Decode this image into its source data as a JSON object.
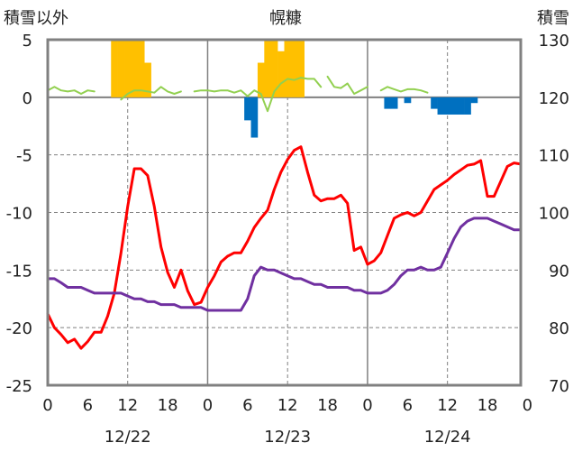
{
  "header": {
    "left_label": "積雪以外",
    "title": "幌糠",
    "right_label": "積雪"
  },
  "chart_data": {
    "type": "line",
    "title": "幌糠",
    "left_axis": {
      "label": "積雪以外",
      "ylim": [
        -25,
        5
      ],
      "ticks": [
        5,
        0,
        -5,
        -10,
        -15,
        -20,
        -25
      ]
    },
    "right_axis": {
      "label": "積雪",
      "ylim": [
        70,
        130
      ],
      "ticks": [
        130,
        120,
        110,
        100,
        90,
        80,
        70
      ]
    },
    "x_axis": {
      "xlim": [
        0,
        71
      ],
      "tick_labels": [
        "0",
        "6",
        "12",
        "18",
        "0",
        "6",
        "12",
        "18",
        "0",
        "6",
        "12",
        "18",
        "0"
      ],
      "tick_hours": [
        0,
        6,
        12,
        18,
        24,
        30,
        36,
        42,
        48,
        54,
        60,
        66,
        72
      ],
      "date_labels": [
        {
          "label": "12/22",
          "hour": 12
        },
        {
          "label": "12/23",
          "hour": 36
        },
        {
          "label": "12/24",
          "hour": 60
        }
      ],
      "day_boundaries": [
        24,
        48
      ],
      "noon_lines": [
        12,
        36,
        60
      ]
    },
    "grid": true,
    "series": [
      {
        "key": "precip_pos",
        "render": "bar",
        "color": "#FFC000",
        "x": [
          10,
          11,
          12,
          13,
          14,
          15,
          32,
          33,
          34,
          35,
          36,
          37,
          38
        ],
        "values": [
          5,
          5,
          5,
          5,
          5,
          3,
          3,
          5,
          5,
          4,
          5,
          5,
          5
        ]
      },
      {
        "key": "precip_neg",
        "render": "bar",
        "color": "#0070C0",
        "x": [
          30,
          31,
          51,
          52,
          54,
          58,
          59,
          60,
          61,
          62,
          63,
          64
        ],
        "values": [
          -2,
          -3.5,
          -1,
          -1,
          -0.5,
          -1,
          -1.5,
          -1.5,
          -1.5,
          -1.5,
          -1.5,
          -0.5
        ]
      },
      {
        "key": "wind",
        "render": "line",
        "color": "#92D050",
        "width": 2,
        "segments": [
          {
            "x": [
              0,
              1,
              2,
              3,
              4,
              5,
              6,
              7
            ],
            "y": [
              0.6,
              0.9,
              0.6,
              0.5,
              0.6,
              0.3,
              0.6,
              0.5
            ]
          },
          {
            "x": [
              11,
              12,
              13,
              14,
              15,
              16,
              17,
              18,
              19,
              20
            ],
            "y": [
              -0.2,
              0.3,
              0.6,
              0.6,
              0.5,
              0.4,
              0.9,
              0.5,
              0.3,
              0.5
            ]
          },
          {
            "x": [
              22,
              23,
              24,
              25,
              26,
              27,
              28,
              29,
              30,
              31,
              32,
              33,
              34,
              35,
              36,
              37,
              38,
              39,
              40,
              41
            ],
            "y": [
              0.5,
              0.6,
              0.6,
              0.5,
              0.6,
              0.6,
              0.4,
              0.6,
              0.1,
              0.6,
              0.3,
              -1.2,
              0.5,
              1.2,
              1.6,
              1.5,
              1.7,
              1.6,
              1.6,
              0.9
            ]
          },
          {
            "x": [
              42,
              43,
              44,
              45,
              46,
              47,
              48
            ],
            "y": [
              1.8,
              0.9,
              0.8,
              1.2,
              0.3,
              0.6,
              0.9
            ]
          },
          {
            "x": [
              50,
              51,
              52,
              53,
              54,
              55,
              56,
              57
            ],
            "y": [
              0.6,
              0.9,
              0.7,
              0.5,
              0.7,
              0.7,
              0.6,
              0.4
            ]
          }
        ]
      },
      {
        "key": "temperature",
        "render": "line",
        "color": "#FF0000",
        "width": 3,
        "x": [
          0,
          1,
          2,
          3,
          4,
          5,
          6,
          7,
          8,
          9,
          10,
          11,
          12,
          13,
          14,
          15,
          16,
          17,
          18,
          19,
          20,
          21,
          22,
          23,
          24,
          25,
          26,
          27,
          28,
          29,
          30,
          31,
          32,
          33,
          34,
          35,
          36,
          37,
          38,
          39,
          40,
          41,
          42,
          43,
          44,
          45,
          46,
          47,
          48,
          49,
          50,
          51,
          52,
          53,
          54,
          55,
          56,
          57,
          58,
          59,
          60,
          61,
          62,
          63,
          64,
          65,
          66,
          67,
          68,
          69,
          70,
          71
        ],
        "y": [
          -18.8,
          -20,
          -20.6,
          -21.3,
          -21,
          -21.8,
          -21.2,
          -20.4,
          -20.4,
          -19,
          -17,
          -13.5,
          -9.5,
          -6.2,
          -6.2,
          -6.8,
          -9.5,
          -13,
          -15.2,
          -16.5,
          -15,
          -16.8,
          -18,
          -17.8,
          -16.5,
          -15.5,
          -14.3,
          -13.8,
          -13.5,
          -13.5,
          -12.5,
          -11.3,
          -10.5,
          -9.8,
          -8,
          -6.5,
          -5.4,
          -4.6,
          -4.3,
          -6.5,
          -8.5,
          -9,
          -8.8,
          -8.8,
          -8.5,
          -9.2,
          -13.3,
          -13,
          -14.5,
          -14.2,
          -13.5,
          -12,
          -10.5,
          -10.2,
          -10,
          -10.3,
          -10,
          -9,
          -8,
          -7.6,
          -7.2,
          -6.7,
          -6.3,
          -5.9,
          -5.8,
          -5.5,
          -8.6,
          -8.6,
          -7.3,
          -6,
          -5.7,
          -5.8
        ]
      },
      {
        "key": "snow_depth",
        "render": "line",
        "axis": "right",
        "color": "#7030A0",
        "width": 3,
        "x": [
          0,
          1,
          2,
          3,
          4,
          5,
          6,
          7,
          8,
          9,
          10,
          11,
          12,
          13,
          14,
          15,
          16,
          17,
          18,
          19,
          20,
          21,
          22,
          23,
          24,
          25,
          26,
          27,
          28,
          29,
          30,
          31,
          32,
          33,
          34,
          35,
          36,
          37,
          38,
          39,
          40,
          41,
          42,
          43,
          44,
          45,
          46,
          47,
          48,
          49,
          50,
          51,
          52,
          53,
          54,
          55,
          56,
          57,
          58,
          59,
          60,
          61,
          62,
          63,
          64,
          65,
          66,
          67,
          68,
          69,
          70,
          71
        ],
        "y": [
          88.5,
          88.5,
          87.8,
          87,
          87,
          87,
          86.5,
          86,
          86,
          86,
          86,
          86,
          85.5,
          85,
          85,
          84.5,
          84.5,
          84,
          84,
          84,
          83.5,
          83.5,
          83.5,
          83.5,
          83,
          83,
          83,
          83,
          83,
          83,
          85,
          89,
          90.5,
          90,
          90,
          89.5,
          89,
          88.5,
          88.5,
          88,
          87.5,
          87.5,
          87,
          87,
          87,
          87,
          86.5,
          86.5,
          86,
          86,
          86,
          86.5,
          87.5,
          89,
          90,
          90,
          90.5,
          90,
          90,
          90.5,
          93,
          95.5,
          97.5,
          98.5,
          99,
          99,
          99,
          98.5,
          98,
          97.5,
          97,
          97
        ]
      }
    ]
  }
}
